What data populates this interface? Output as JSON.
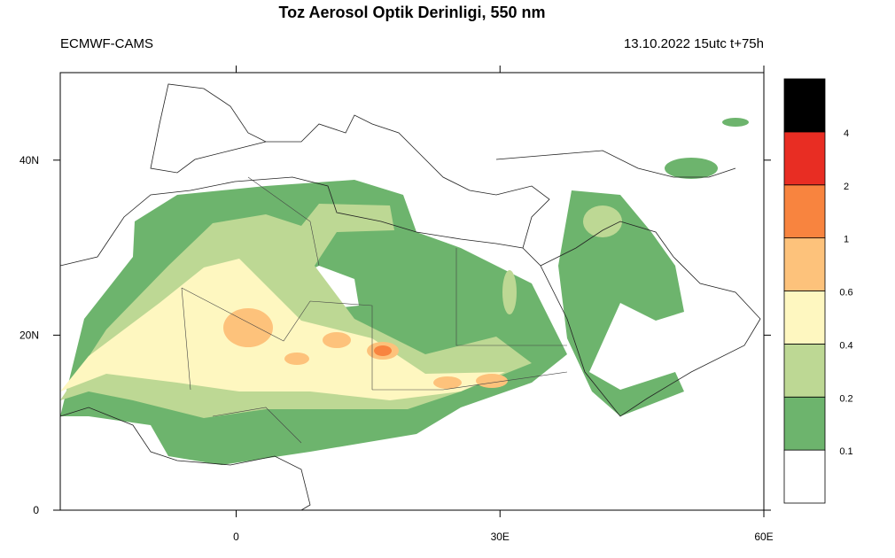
{
  "title": "Toz Aerosol Optik Derinligi, 550 nm",
  "left_label": "ECMWF-CAMS",
  "right_label": "13.10.2022 15utc t+75h",
  "lonlim": [
    -20,
    60
  ],
  "latlim": [
    0,
    50
  ],
  "lon_ticks": [
    0,
    {
      "value": 30,
      "label": "30E"
    },
    {
      "value": 60,
      "label": "60E"
    }
  ],
  "lat_ticks": [
    0,
    {
      "value": 20,
      "label": "20N"
    },
    {
      "value": 40,
      "label": "40N"
    }
  ],
  "colorbar": {
    "levels": [
      0.1,
      0.2,
      0.4,
      0.6,
      1,
      2,
      4
    ],
    "colors": [
      "#ffffff",
      "#6db46d",
      "#bdd894",
      "#fef7c0",
      "#fdc27b",
      "#f8843f",
      "#e82d23",
      "#000000"
    ]
  }
}
